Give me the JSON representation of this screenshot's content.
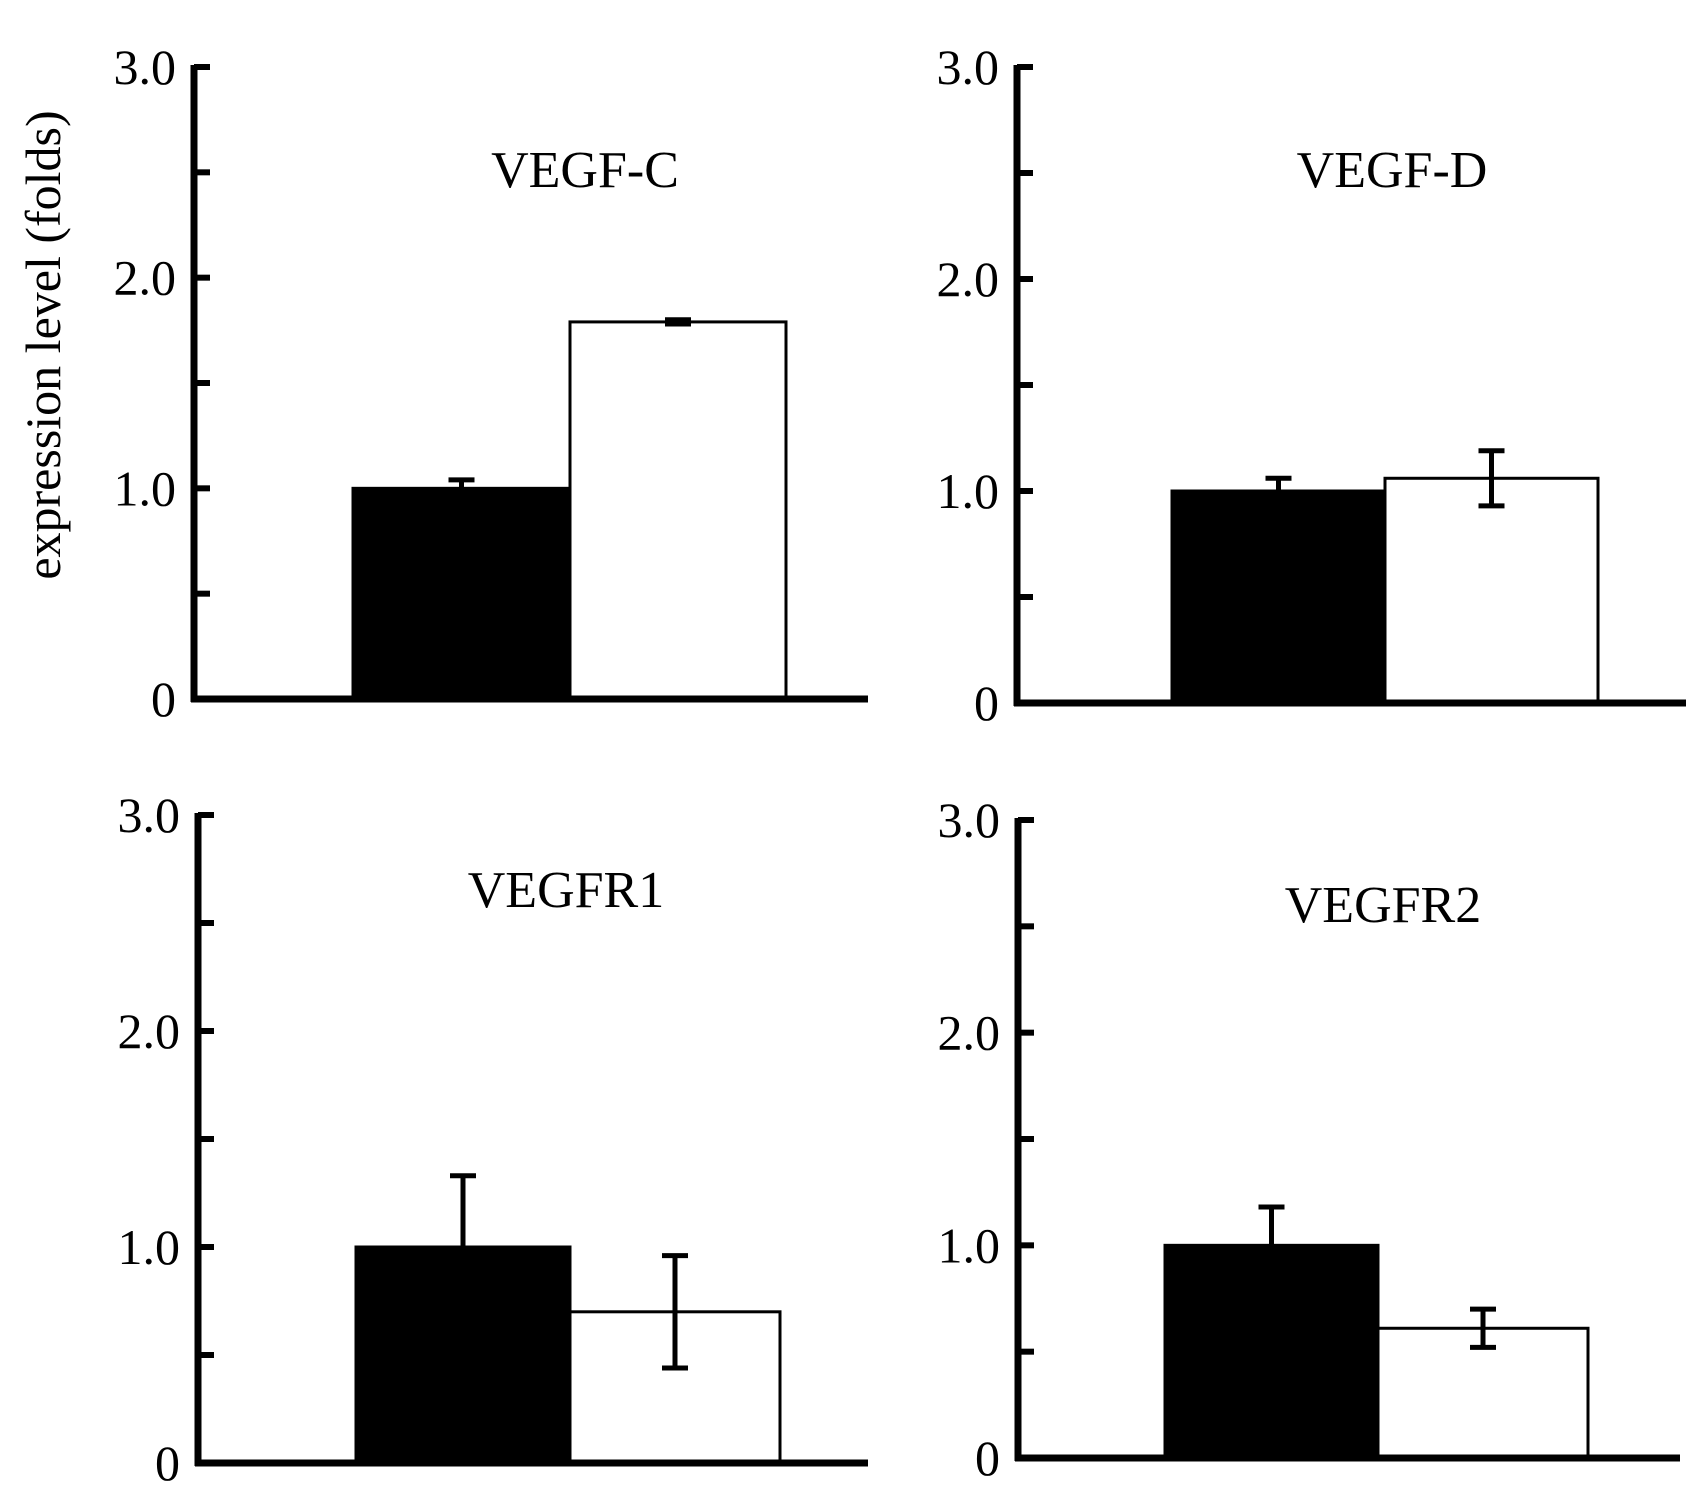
{
  "figure": {
    "ylabel": "expression level (folds)"
  },
  "chart_data": [
    {
      "type": "bar",
      "title": "VEGF-C",
      "ylabel": "expression level (folds)",
      "ylim": [
        0,
        3.0
      ],
      "yticks": [
        0,
        0.5,
        1.0,
        1.5,
        2.0,
        2.5,
        3.0
      ],
      "ytick_labels": [
        "0",
        "",
        "1.0",
        "",
        "2.0",
        "",
        "3.0"
      ],
      "series": [
        {
          "values": [
            1.0
          ],
          "errors": [
            0.04
          ],
          "color": "#000000"
        },
        {
          "values": [
            1.79
          ],
          "errors": [
            0.01
          ],
          "color": "#ffffff"
        }
      ]
    },
    {
      "type": "bar",
      "title": "VEGF-D",
      "ylabel": "",
      "ylim": [
        0,
        3.0
      ],
      "yticks": [
        0,
        0.5,
        1.0,
        1.5,
        2.0,
        2.5,
        3.0
      ],
      "ytick_labels": [
        "0",
        "",
        "1.0",
        "",
        "2.0",
        "",
        "3.0"
      ],
      "series": [
        {
          "values": [
            1.0
          ],
          "errors": [
            0.06
          ],
          "color": "#000000"
        },
        {
          "values": [
            1.06
          ],
          "errors": [
            0.13
          ],
          "color": "#ffffff"
        }
      ]
    },
    {
      "type": "bar",
      "title": "VEGFR1",
      "ylabel": "",
      "ylim": [
        0,
        3.0
      ],
      "yticks": [
        0,
        0.5,
        1.0,
        1.5,
        2.0,
        2.5,
        3.0
      ],
      "ytick_labels": [
        "0",
        "",
        "1.0",
        "",
        "2.0",
        "",
        "3.0"
      ],
      "series": [
        {
          "values": [
            1.0
          ],
          "errors": [
            0.33
          ],
          "color": "#000000"
        },
        {
          "values": [
            0.7
          ],
          "errors": [
            0.26
          ],
          "color": "#ffffff"
        }
      ]
    },
    {
      "type": "bar",
      "title": "VEGFR2",
      "ylabel": "",
      "ylim": [
        0,
        3.0
      ],
      "yticks": [
        0,
        0.5,
        1.0,
        1.5,
        2.0,
        2.5,
        3.0
      ],
      "ytick_labels": [
        "0",
        "",
        "1.0",
        "",
        "2.0",
        "",
        "3.0"
      ],
      "series": [
        {
          "values": [
            1.0
          ],
          "errors": [
            0.18
          ],
          "color": "#000000"
        },
        {
          "values": [
            0.61
          ],
          "errors": [
            0.09
          ],
          "color": "#ffffff"
        }
      ]
    }
  ]
}
